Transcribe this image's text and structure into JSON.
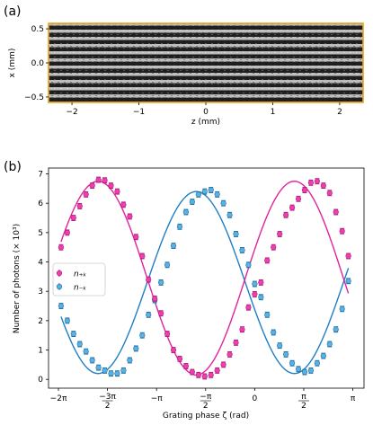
{
  "panel_a": {
    "label": "(a)",
    "xlabel": "z (mm)",
    "ylabel": "x (mm)",
    "xticks": [
      "−2",
      "−1",
      "0",
      "1",
      "2"
    ],
    "yticks": [
      "0.5",
      "0.0",
      "−0.5"
    ],
    "frame_color": "#e8a317"
  },
  "panel_b": {
    "label": "(b)",
    "legend": [
      "n₊ₖ",
      "n₋ₖ"
    ],
    "xticks": [
      "−2π",
      "−3π/2",
      "−π",
      "−π/2",
      "0",
      "π/2",
      "π"
    ],
    "yticks": [
      "0",
      "1",
      "2",
      "3",
      "4",
      "5",
      "6",
      "7"
    ],
    "colors": {
      "n_plus": "#ee3fb0",
      "n_minus": "#55b3e6",
      "fit_plus": "#e0249a",
      "fit_minus": "#1f7fc4"
    }
  },
  "chart_data": [
    {
      "type": "heatmap",
      "title": "",
      "xlabel": "z (mm)",
      "ylabel": "x (mm)",
      "xlim": [
        -2.35,
        2.35
      ],
      "ylim": [
        -0.58,
        0.58
      ],
      "description": "grayscale image of horizontal fringe pattern"
    },
    {
      "type": "scatter",
      "title": "",
      "xlabel": "Grating phase ζ (rad)",
      "ylabel": "Number of photons (× 10³)",
      "xlim": [
        -6.6,
        3.5
      ],
      "ylim": [
        -0.3,
        7.2
      ],
      "x_tick_values": [
        -6.283,
        -4.712,
        -3.1416,
        -1.5708,
        0,
        1.5708,
        3.1416
      ],
      "y_tick_values": [
        0,
        1,
        2,
        3,
        4,
        5,
        6,
        7
      ],
      "x": [
        -6.2,
        -6.0,
        -5.8,
        -5.6,
        -5.4,
        -5.2,
        -5.0,
        -4.8,
        -4.6,
        -4.4,
        -4.2,
        -4.0,
        -3.8,
        -3.6,
        -3.4,
        -3.2,
        -3.0,
        -2.8,
        -2.6,
        -2.4,
        -2.2,
        -2.0,
        -1.8,
        -1.6,
        -1.4,
        -1.2,
        -1.0,
        -0.8,
        -0.6,
        -0.4,
        -0.2,
        0.0,
        0.2,
        0.4,
        0.6,
        0.8,
        1.0,
        1.2,
        1.4,
        1.6,
        1.8,
        2.0,
        2.2,
        2.4,
        2.6,
        2.8,
        3.0
      ],
      "series": [
        {
          "name": "n₊ₖ",
          "values": [
            4.5,
            5.0,
            5.5,
            5.9,
            6.3,
            6.6,
            6.8,
            6.78,
            6.6,
            6.4,
            5.95,
            5.55,
            4.85,
            4.2,
            3.4,
            2.75,
            2.25,
            1.55,
            1.0,
            0.7,
            0.45,
            0.25,
            0.15,
            0.1,
            0.15,
            0.3,
            0.5,
            0.85,
            1.25,
            1.7,
            2.45,
            2.9,
            3.3,
            4.05,
            4.5,
            4.95,
            5.6,
            5.85,
            6.15,
            6.45,
            6.7,
            6.75,
            6.6,
            6.35,
            5.7,
            5.05,
            4.2
          ]
        },
        {
          "name": "n₋ₖ",
          "values": [
            2.5,
            2.0,
            1.55,
            1.2,
            0.95,
            0.65,
            0.4,
            0.3,
            0.2,
            0.2,
            0.3,
            0.65,
            1.05,
            1.5,
            2.2,
            2.7,
            3.3,
            3.9,
            4.55,
            5.2,
            5.7,
            6.05,
            6.3,
            6.4,
            6.45,
            6.3,
            6.0,
            5.6,
            4.95,
            4.4,
            3.9,
            3.25,
            2.8,
            2.2,
            1.6,
            1.15,
            0.85,
            0.55,
            0.35,
            0.25,
            0.3,
            0.55,
            0.8,
            1.2,
            1.7,
            2.4,
            3.35
          ]
        }
      ],
      "fits": [
        {
          "series": "n₊ₖ",
          "model": "3.45 + 3.3·cos(ζ − 1.27)"
        },
        {
          "series": "n₋ₖ",
          "model": "3.3 − 3.1·cos(ζ − 1.27)"
        }
      ],
      "legend_position": "center-left"
    }
  ]
}
